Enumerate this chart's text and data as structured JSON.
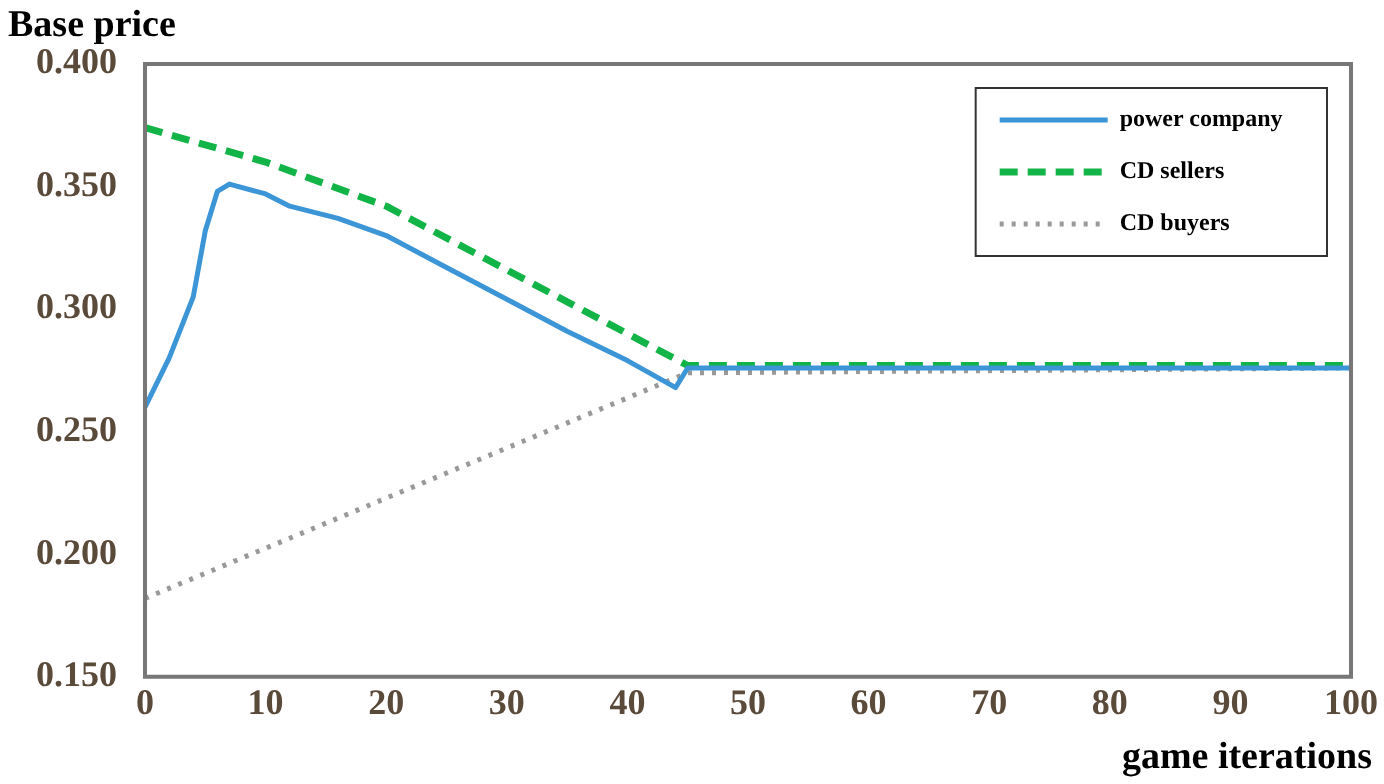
{
  "chart_data": {
    "type": "line",
    "ylabel": "Base price",
    "xlabel": "game iterations",
    "xlim": [
      0,
      100
    ],
    "xticks": [
      0,
      10,
      20,
      30,
      40,
      50,
      60,
      70,
      80,
      90,
      100
    ],
    "ylim": [
      0.15,
      0.4
    ],
    "yticks": [
      {
        "value": 0.15,
        "label": "0.150"
      },
      {
        "value": 0.2,
        "label": "0.200"
      },
      {
        "value": 0.25,
        "label": "0.250"
      },
      {
        "value": 0.3,
        "label": "0.300"
      },
      {
        "value": 0.35,
        "label": "0.350"
      },
      {
        "value": 0.4,
        "label": "0.400"
      }
    ],
    "grid": false,
    "legend": "top right",
    "marker": "none",
    "series": [
      {
        "name": "power company",
        "color": "#3b95d6",
        "line_style": "solid",
        "x": [
          0,
          2,
          4,
          5,
          6,
          7,
          10,
          12,
          16,
          20,
          25,
          30,
          35,
          40,
          44,
          45,
          100
        ],
        "values": [
          0.26,
          0.28,
          0.305,
          0.332,
          0.348,
          0.351,
          0.347,
          0.342,
          0.337,
          0.33,
          0.317,
          0.304,
          0.291,
          0.279,
          0.268,
          0.276,
          0.276
        ]
      },
      {
        "name": "CD sellers",
        "color": "#12b347",
        "line_style": "dashed",
        "x": [
          0,
          10,
          20,
          30,
          40,
          45,
          100
        ],
        "values": [
          0.374,
          0.36,
          0.342,
          0.316,
          0.29,
          0.277,
          0.277
        ]
      },
      {
        "name": "CD buyers",
        "color": "#999999",
        "line_style": "dotted",
        "x": [
          0,
          45,
          100
        ],
        "values": [
          0.182,
          0.274,
          0.276
        ]
      }
    ]
  }
}
